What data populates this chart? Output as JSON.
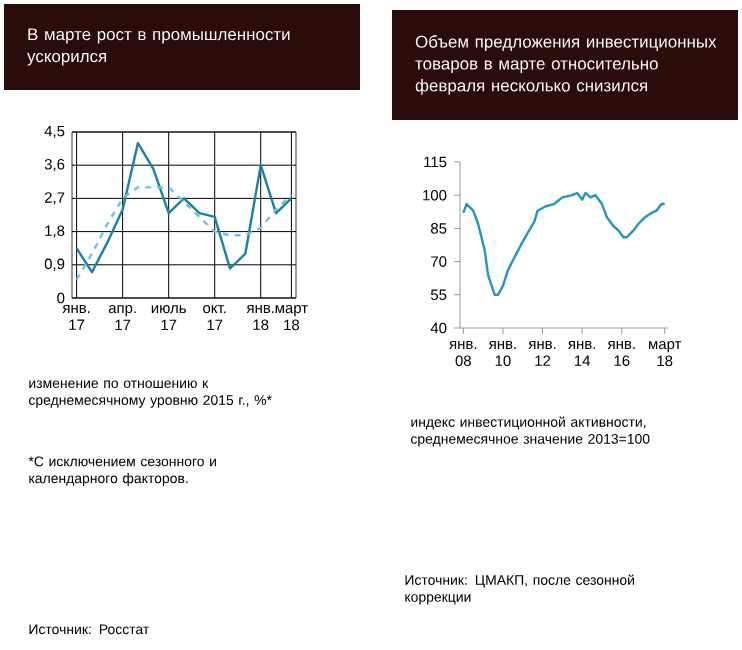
{
  "chart_data": [
    {
      "type": "line",
      "title": "В марте рост в промышленности ускорился",
      "categories": [
        "янв. 17",
        null,
        null,
        "апр. 17",
        null,
        null,
        "июль 17",
        null,
        null,
        "окт. 17",
        null,
        null,
        "янв. 18",
        null,
        "март 18"
      ],
      "series": [
        {
          "color": "#17839f",
          "line_style": "solid",
          "values": [
            1.35,
            0.7,
            1.5,
            2.4,
            4.2,
            3.5,
            2.3,
            2.7,
            2.3,
            2.2,
            0.8,
            1.2,
            3.6,
            2.3,
            2.7
          ]
        },
        {
          "color": "#6cc3e3",
          "line_style": "dashed",
          "values": [
            0.5,
            1.2,
            2.0,
            2.7,
            3.0,
            3.0,
            3.0,
            2.6,
            2.2,
            1.8,
            1.7,
            1.7,
            1.9,
            2.4,
            2.8
          ]
        }
      ],
      "ylim": [
        0,
        4.5
      ],
      "yticks": [
        0,
        {
          "value": 0.9,
          "label": "0,9"
        },
        {
          "value": 1.8,
          "label": "1,8"
        },
        {
          "value": 2.7,
          "label": "2,7"
        },
        {
          "value": 3.6,
          "label": "3,6"
        },
        {
          "value": 4.5,
          "label": "4,5"
        }
      ],
      "grid": true,
      "marker": "none",
      "annotations": [
        "изменение по отношению к среднемесячному уровню 2015 г., %*",
        "*С исключением сезонного и календарного факторов.",
        "Источник: Росстат"
      ]
    },
    {
      "type": "line",
      "title": "Объем предложения инвестиционных товаров в марте относительно февраля несколько снизился",
      "series": [
        {
          "color": "#2496be",
          "line_style": "solid",
          "x": [
            "2008-01",
            "2008-03",
            "2008-07",
            "2008-10",
            "2009-02",
            "2009-04",
            "2009-08",
            "2009-10",
            "2010-01",
            "2010-04",
            "2010-08",
            "2011-01",
            "2011-04",
            "2011-08",
            "2011-10",
            "2012-03",
            "2012-08",
            "2013-01",
            "2013-07",
            "2013-10",
            "2014-01",
            "2014-03",
            "2014-06",
            "2014-09",
            "2015-01",
            "2015-04",
            "2015-08",
            "2015-11",
            "2016-02",
            "2016-04",
            "2016-08",
            "2016-11",
            "2017-03",
            "2017-07",
            "2017-10",
            "2018-01",
            "2018-03"
          ],
          "values": [
            92,
            96,
            93,
            87,
            75,
            64,
            55,
            55,
            59,
            66,
            72,
            79,
            83,
            88,
            93,
            95,
            96,
            99,
            100,
            101,
            98,
            101,
            99,
            100,
            96,
            90,
            86,
            84,
            81,
            81,
            84,
            87,
            90,
            92,
            93,
            96,
            96
          ]
        }
      ],
      "xlim": [
        "2007-11",
        "2018-05"
      ],
      "xticks": [
        {
          "value": "2008-01",
          "label": "янв. 08"
        },
        {
          "value": "2010-01",
          "label": "янв. 10"
        },
        {
          "value": "2012-01",
          "label": "янв. 12"
        },
        {
          "value": "2014-01",
          "label": "янв. 14"
        },
        {
          "value": "2016-01",
          "label": "янв. 16"
        },
        {
          "value": "2018-03",
          "label": "март 18"
        }
      ],
      "ylim": [
        40,
        115
      ],
      "yticks": [
        40,
        55,
        70,
        85,
        100,
        115
      ],
      "grid": false,
      "marker": "none",
      "annotations": [
        "индекс инвестиционной активности, среднемесячное значение 2013=100",
        "Источник: ЦМАКП, после сезонной коррекции"
      ]
    }
  ]
}
